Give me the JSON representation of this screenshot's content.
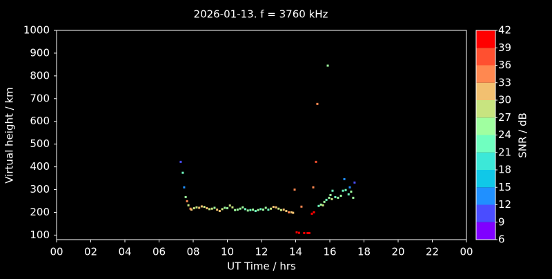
{
  "chart_data": {
    "type": "scatter",
    "title": "2026-01-13. f = 3760 kHz",
    "x_label": "UT Time / hrs",
    "y_label": "Virtual height / km",
    "xlim": [
      0,
      24
    ],
    "xticks": [
      {
        "value": 0,
        "label": "00"
      },
      {
        "value": 2,
        "label": "02"
      },
      {
        "value": 4,
        "label": "04"
      },
      {
        "value": 6,
        "label": "06"
      },
      {
        "value": 8,
        "label": "08"
      },
      10,
      12,
      14,
      16,
      18,
      20,
      22,
      {
        "value": 24,
        "label": "00"
      }
    ],
    "ylim": [
      80,
      1000
    ],
    "yticks": [
      100,
      200,
      300,
      400,
      500,
      600,
      700,
      800,
      900,
      1000
    ],
    "x": [
      7.27,
      7.39,
      7.47,
      7.56,
      7.64,
      7.72,
      7.84,
      7.9,
      8.05,
      8.2,
      8.35,
      8.5,
      8.65,
      8.8,
      8.95,
      9.1,
      9.25,
      9.4,
      9.55,
      9.7,
      9.85,
      10.0,
      10.15,
      10.3,
      10.45,
      10.6,
      10.75,
      10.9,
      11.05,
      11.2,
      11.35,
      11.5,
      11.65,
      11.8,
      11.95,
      12.1,
      12.25,
      12.4,
      12.55,
      12.7,
      12.85,
      13.0,
      13.15,
      13.3,
      13.45,
      13.6,
      13.75,
      13.85,
      13.94,
      14.06,
      14.2,
      14.5,
      14.7,
      14.8,
      14.34,
      14.95,
      15.07,
      15.03,
      15.19,
      15.27,
      15.88,
      15.35,
      15.48,
      15.6,
      15.68,
      15.8,
      15.96,
      16.04,
      16.16,
      16.12,
      16.32,
      16.48,
      16.65,
      16.77,
      16.85,
      16.93,
      17.1,
      17.17,
      17.25,
      17.37,
      17.45
    ],
    "y": [
      422,
      374,
      310,
      267,
      249,
      231,
      216,
      212,
      218,
      222,
      220,
      226,
      224,
      218,
      214,
      216,
      220,
      212,
      206,
      214,
      220,
      218,
      230,
      222,
      210,
      212,
      216,
      222,
      214,
      208,
      210,
      212,
      206,
      210,
      214,
      212,
      220,
      212,
      216,
      224,
      222,
      216,
      210,
      212,
      206,
      200,
      200,
      198,
      300,
      112,
      110,
      109,
      109,
      109,
      225,
      194,
      200,
      310,
      422,
      677,
      845,
      228,
      234,
      231,
      246,
      255,
      264,
      276,
      295,
      258,
      267,
      264,
      273,
      295,
      346,
      298,
      279,
      310,
      291,
      264,
      331
    ],
    "snr": [
      10,
      22,
      13,
      25,
      33,
      28,
      33,
      30,
      28,
      27,
      30,
      31,
      29,
      30,
      27,
      28,
      26,
      30,
      31,
      27,
      25,
      26,
      29,
      27,
      24,
      25,
      26,
      24,
      23,
      24,
      22,
      25,
      23,
      24,
      22,
      25,
      24,
      23,
      28,
      31,
      30,
      29,
      27,
      30,
      32,
      33,
      31,
      30,
      34,
      41,
      40,
      42,
      41,
      40,
      34,
      40,
      39,
      35,
      38,
      35,
      25,
      22,
      26,
      28,
      24,
      23,
      25,
      26,
      21,
      27,
      22,
      26,
      24,
      22,
      12,
      21,
      23,
      12,
      24,
      26,
      11
    ],
    "colorbar": {
      "label": "SNR / dB",
      "lim": [
        6,
        42
      ],
      "ticks": [
        6,
        9,
        12,
        15,
        18,
        21,
        24,
        27,
        30,
        33,
        36,
        39,
        42
      ],
      "colors": [
        "#8000ff",
        "#4a4dff",
        "#2090ff",
        "#10c8e8",
        "#3ce8d8",
        "#70ffc0",
        "#a0ffa0",
        "#c8e480",
        "#f2c070",
        "#ff8850",
        "#ff5030",
        "#ff0000"
      ]
    },
    "background": "#000000",
    "foreground": "#ffffff"
  }
}
